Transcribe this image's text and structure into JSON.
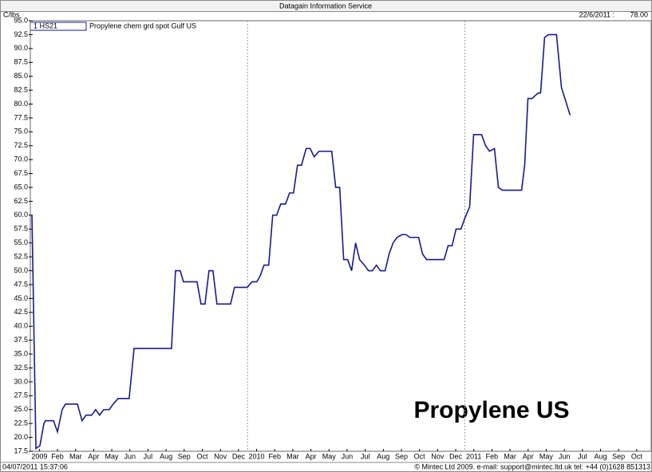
{
  "chart_data": {
    "type": "line",
    "title": "Datagain Information Service",
    "y_label": "C/lbs",
    "last_date": "22/6/2011 :",
    "last_value": "78.00",
    "annotation": "Propylene US",
    "timestamp": "04/07/2011 15:37:06",
    "footer": "© Mintec Ltd 2009. e-mail: support@mintec.ltd.uk tel: +44 (0)1628 851313",
    "legend_id": "1 HS21",
    "xlim": [
      0,
      34.3
    ],
    "ylim": [
      17.5,
      95
    ],
    "x_gridlines": [
      12,
      24
    ],
    "xticks": [
      {
        "value": 0.5,
        "label": "2009"
      },
      {
        "value": 1.5,
        "label": "Feb"
      },
      {
        "value": 2.5,
        "label": "Mar"
      },
      {
        "value": 3.5,
        "label": "Apr"
      },
      {
        "value": 4.5,
        "label": "May"
      },
      {
        "value": 5.5,
        "label": "Jun"
      },
      {
        "value": 6.5,
        "label": "Jul"
      },
      {
        "value": 7.5,
        "label": "Aug"
      },
      {
        "value": 8.5,
        "label": "Sep"
      },
      {
        "value": 9.5,
        "label": "Oct"
      },
      {
        "value": 10.5,
        "label": "Nov"
      },
      {
        "value": 11.5,
        "label": "Dec"
      },
      {
        "value": 12.5,
        "label": "2010"
      },
      {
        "value": 13.5,
        "label": "Feb"
      },
      {
        "value": 14.5,
        "label": "Mar"
      },
      {
        "value": 15.5,
        "label": "Apr"
      },
      {
        "value": 16.5,
        "label": "May"
      },
      {
        "value": 17.5,
        "label": "Jun"
      },
      {
        "value": 18.5,
        "label": "Jul"
      },
      {
        "value": 19.5,
        "label": "Aug"
      },
      {
        "value": 20.5,
        "label": "Sep"
      },
      {
        "value": 21.5,
        "label": "Oct"
      },
      {
        "value": 22.5,
        "label": "Nov"
      },
      {
        "value": 23.5,
        "label": "Dec"
      },
      {
        "value": 24.5,
        "label": "2011"
      },
      {
        "value": 25.5,
        "label": "Feb"
      },
      {
        "value": 26.5,
        "label": "Mar"
      },
      {
        "value": 27.5,
        "label": "Apr"
      },
      {
        "value": 28.5,
        "label": "May"
      },
      {
        "value": 29.5,
        "label": "Jun"
      },
      {
        "value": 30.5,
        "label": "Jul"
      },
      {
        "value": 31.5,
        "label": "Aug"
      },
      {
        "value": 32.5,
        "label": "Sep"
      },
      {
        "value": 33.5,
        "label": "Oct"
      }
    ],
    "yticks": [
      17.5,
      {
        "value": 20,
        "label": "20.0"
      },
      22.5,
      {
        "value": 25,
        "label": "25.0"
      },
      27.5,
      {
        "value": 30,
        "label": "30.0"
      },
      32.5,
      {
        "value": 35,
        "label": "35.0"
      },
      37.5,
      {
        "value": 40,
        "label": "40.0"
      },
      42.5,
      {
        "value": 45,
        "label": "45.0"
      },
      47.5,
      {
        "value": 50,
        "label": "50.0"
      },
      52.5,
      {
        "value": 55,
        "label": "55.0"
      },
      57.5,
      {
        "value": 60,
        "label": "60.0"
      },
      62.5,
      {
        "value": 65,
        "label": "65.0"
      },
      67.5,
      {
        "value": 70,
        "label": "70.0"
      },
      72.5,
      {
        "value": 75,
        "label": "75.0"
      },
      77.5,
      {
        "value": 80,
        "label": "80.0"
      },
      82.5,
      {
        "value": 85,
        "label": "85.0"
      },
      87.5,
      {
        "value": 90,
        "label": "90.0"
      },
      92.5,
      {
        "value": 95,
        "label": "95.0"
      }
    ],
    "series": [
      {
        "name": "Propylene chem grd spot Gulf US",
        "color": "#1a1a8c",
        "x": [
          0.09,
          0.31,
          0.53,
          0.75,
          0.84,
          1.28,
          1.5,
          1.76,
          1.94,
          2.6,
          2.86,
          3.08,
          3.39,
          3.61,
          3.83,
          4.05,
          4.36,
          4.58,
          4.85,
          5.46,
          5.73,
          7.8,
          8.02,
          8.28,
          8.46,
          9.21,
          9.43,
          9.65,
          9.87,
          10.09,
          10.31,
          11.06,
          11.28,
          11.98,
          12.25,
          12.51,
          12.69,
          12.91,
          13.17,
          13.39,
          13.61,
          13.83,
          14.1,
          14.32,
          14.54,
          14.76,
          14.98,
          15.24,
          15.46,
          15.68,
          15.95,
          16.65,
          16.87,
          17.09,
          17.31,
          17.53,
          17.75,
          17.97,
          18.19,
          18.46,
          18.68,
          18.9,
          19.12,
          19.34,
          19.6,
          19.82,
          20.04,
          20.26,
          20.53,
          20.75,
          20.97,
          21.45,
          21.67,
          21.89,
          22.86,
          23.08,
          23.3,
          23.52,
          23.79,
          24.01,
          24.27,
          24.49,
          24.93,
          25.15,
          25.37,
          25.64,
          25.86,
          26.08,
          27.14,
          27.31,
          27.49,
          27.71,
          28.06,
          28.19,
          28.41,
          28.63,
          29.07,
          29.34,
          29.82
        ],
        "values": [
          60,
          18,
          18.5,
          22.5,
          23,
          23,
          21,
          25,
          26,
          26,
          23,
          24,
          24,
          25,
          24,
          25,
          25,
          26,
          27,
          27,
          36,
          36,
          50,
          50,
          48,
          48,
          44,
          44,
          50,
          50,
          44,
          44,
          47,
          47,
          48,
          48,
          49,
          51,
          51,
          60,
          60,
          62,
          62,
          64,
          64,
          69,
          69,
          72,
          72,
          70.5,
          71.5,
          71.5,
          65,
          65,
          52,
          52,
          50,
          55,
          52,
          51,
          50,
          50,
          51,
          50,
          50,
          53,
          55,
          56,
          56.5,
          56.5,
          56,
          56,
          53,
          52,
          52,
          54.5,
          54.5,
          57.5,
          57.5,
          59.5,
          61.5,
          74.5,
          74.5,
          72.5,
          71.5,
          72,
          65,
          64.5,
          64.5,
          69,
          81,
          81,
          82,
          82,
          92,
          92.5,
          92.5,
          83,
          78
        ]
      }
    ]
  }
}
